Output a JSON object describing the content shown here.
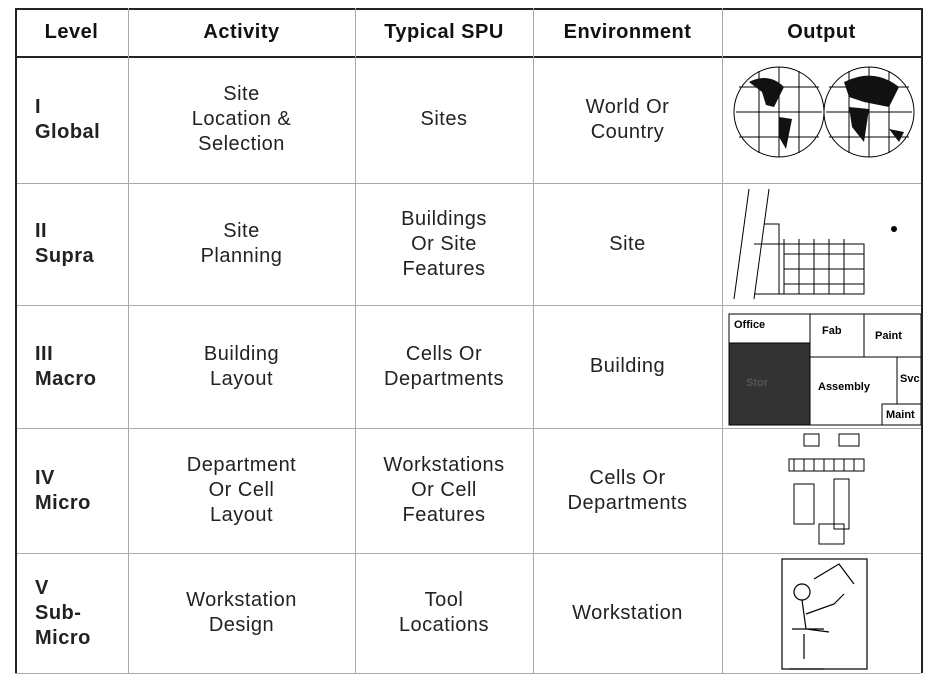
{
  "header": [
    "Level",
    "Activity",
    "Typical SPU",
    "Environment",
    "Output"
  ],
  "rows": [
    {
      "level": [
        "I",
        "Global"
      ],
      "activity": [
        "Site",
        "Location &",
        "Selection"
      ],
      "spu": [
        "Sites"
      ],
      "environment": [
        "World Or",
        "Country"
      ]
    },
    {
      "level": [
        "II",
        "Supra"
      ],
      "activity": [
        "Site",
        "Planning"
      ],
      "spu": [
        "Buildings",
        "Or Site",
        "Features"
      ],
      "environment": [
        "Site"
      ]
    },
    {
      "level": [
        "III",
        "Macro"
      ],
      "activity": [
        "Building",
        "Layout"
      ],
      "spu": [
        "Cells Or",
        "Departments"
      ],
      "environment": [
        "Building"
      ],
      "output_labels": [
        "Office",
        "Fab",
        "Paint",
        "Stor",
        "Assembly",
        "Svc",
        "Maint"
      ]
    },
    {
      "level": [
        "IV",
        "Micro"
      ],
      "activity": [
        "Department",
        "Or Cell",
        "Layout"
      ],
      "spu": [
        "Workstations",
        "Or Cell",
        "Features"
      ],
      "environment": [
        "Cells Or",
        "Departments"
      ]
    },
    {
      "level": [
        "V",
        "Sub-",
        "Micro"
      ],
      "activity": [
        "Workstation",
        "Design"
      ],
      "spu": [
        "Tool",
        "Locations"
      ],
      "environment": [
        "Workstation"
      ]
    }
  ]
}
